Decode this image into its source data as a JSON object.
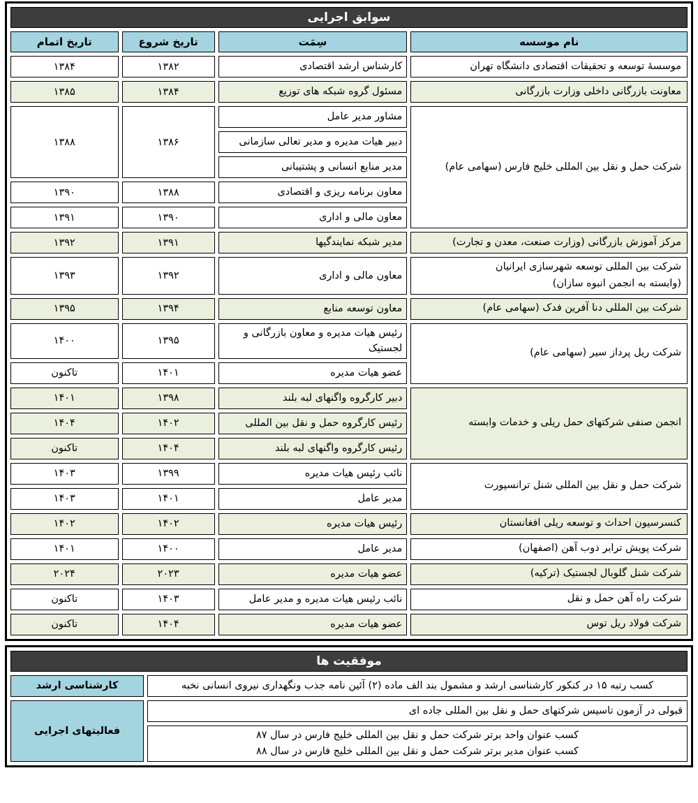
{
  "colors": {
    "title_band": "#3d3d3d",
    "header_blue": "#a5d4e1",
    "row_green": "#eaf0dd",
    "border": "#000000"
  },
  "records": {
    "title": "سوابق اجرایی",
    "headers": {
      "institution": "نام موسسه",
      "position": "سِمَت",
      "start": "تاریخ شروع",
      "end": "تاریخ اتمام"
    },
    "groups": [
      {
        "institution": "موسسهٔ توسعه و تحقیقات اقتصادی دانشگاه تهران",
        "shade": "white",
        "rows": [
          {
            "position": "کارشناس ارشد اقتصادی",
            "start": "۱۳۸۲",
            "end": "۱۳۸۴"
          }
        ]
      },
      {
        "institution": "معاونت بازرگانی داخلی وزارت بازرگانی",
        "shade": "green",
        "rows": [
          {
            "position": "مسئول گروه شبکه های توزیع",
            "start": "۱۳۸۴",
            "end": "۱۳۸۵"
          }
        ]
      },
      {
        "institution": "شرکت حمل و نقل بین المللی خلیج فارس (سهامی عام)",
        "shade": "white",
        "rows": [
          {
            "position": "مشاور مدیر عامل",
            "start": "۱۳۸۶",
            "end": "۱۳۸۸",
            "span": 3
          },
          {
            "position": "دبیر هیات مدیره و مدیر تعالی سازمانی"
          },
          {
            "position": "مدیر منابع انسانی و پشتیبانی"
          },
          {
            "position": "معاون برنامه ریزی و اقتصادی",
            "start": "۱۳۸۸",
            "end": "۱۳۹۰"
          },
          {
            "position": "معاون مالی و اداری",
            "start": "۱۳۹۰",
            "end": "۱۳۹۱"
          }
        ]
      },
      {
        "institution": "مرکز آموزش بازرگانی (وزارت صنعت، معدن و تجارت)",
        "shade": "green",
        "rows": [
          {
            "position": "مدیر شبکه نمایندگیها",
            "start": "۱۳۹۱",
            "end": "۱۳۹۲"
          }
        ]
      },
      {
        "institution": "شرکت بین المللی توسعه شهرسازی ایرانیان\n(وابسته به انجمن انبوه سازان)",
        "shade": "white",
        "rows": [
          {
            "position": "معاون مالی و اداری",
            "start": "۱۳۹۲",
            "end": "۱۳۹۳"
          }
        ]
      },
      {
        "institution": "شرکت بین المللی دنا آفرین فدک (سهامی عام)",
        "shade": "green",
        "rows": [
          {
            "position": "معاون توسعه منابع",
            "start": "۱۳۹۴",
            "end": "۱۳۹۵"
          }
        ]
      },
      {
        "institution": "شرکت ریل پرداز سیر (سهامی عام)",
        "shade": "white",
        "rows": [
          {
            "position": "رئیس هیات مدیره و معاون بازرگانی و لجستیک",
            "start": "۱۳۹۵",
            "end": "۱۴۰۰"
          },
          {
            "position": "عضو هیات مدیره",
            "start": "۱۴۰۱",
            "end": "تاکنون"
          }
        ]
      },
      {
        "institution": "انجمن صنفی شرکتهای حمل ریلی و خدمات وابسته",
        "shade": "green",
        "rows": [
          {
            "position": "دبیر کارگروه واگنهای لبه بلند",
            "start": "۱۳۹۸",
            "end": "۱۴۰۱"
          },
          {
            "position": "رئیس کارگروه حمل و نقل بین المللی",
            "start": "۱۴۰۲",
            "end": "۱۴۰۴"
          },
          {
            "position": "رئیس کارگروه واگنهای لبه بلند",
            "start": "۱۴۰۴",
            "end": "تاکنون"
          }
        ]
      },
      {
        "institution": "شرکت حمل و نقل بین المللی شنل ترانسپورت",
        "shade": "white",
        "rows": [
          {
            "position": "نائب رئیس هیات مدیره",
            "start": "۱۳۹۹",
            "end": "۱۴۰۳"
          },
          {
            "position": "مدیر عامل",
            "start": "۱۴۰۱",
            "end": "۱۴۰۳"
          }
        ]
      },
      {
        "institution": "کنسرسیون احداث و توسعه ریلی افغانستان",
        "shade": "green",
        "rows": [
          {
            "position": "رئیس هیات مدیره",
            "start": "۱۴۰۲",
            "end": "۱۴۰۲"
          }
        ]
      },
      {
        "institution": "شرکت پویش ترابر ذوب آهن (اصفهان)",
        "shade": "white",
        "rows": [
          {
            "position": "مدیر عامل",
            "start": "۱۴۰۰",
            "end": "۱۴۰۱"
          }
        ]
      },
      {
        "institution": "شرکت شنل گلوبال لجستیک (ترکیه)",
        "shade": "green",
        "rows": [
          {
            "position": "عضو هیات مدیره",
            "start": "۲۰۲۳",
            "end": "۲۰۲۴"
          }
        ]
      },
      {
        "institution": "شرکت راه آهن حمل و نقل",
        "shade": "white",
        "rows": [
          {
            "position": "نائب رئیس هیات مدیره و مدیر عامل",
            "start": "۱۴۰۳",
            "end": "تاکنون"
          }
        ]
      },
      {
        "institution": "شرکت فولاد ریل توس",
        "shade": "green",
        "rows": [
          {
            "position": "عضو هیات مدیره",
            "start": "۱۴۰۴",
            "end": "تاکنون"
          }
        ]
      }
    ]
  },
  "achievements": {
    "title": "موفقیت ها",
    "groups": [
      {
        "label": "کارشناسی ارشد",
        "rows": [
          {
            "align": "center",
            "lines": [
              "کسب رتبه ۱۵ در کنکور کارشناسی ارشد و مشمول بند الف ماده (۲) آئین نامه جذب ونگهداری نیروی انسانی نخبه"
            ]
          }
        ]
      },
      {
        "label": "فعالیتهای اجرایی",
        "rows": [
          {
            "align": "right",
            "lines": [
              "قبولی در آزمون تاسیس شرکتهای حمل و نقل بین المللی جاده ای"
            ]
          },
          {
            "align": "center",
            "lines": [
              "کسب عنوان واحد برتر شرکت حمل و نقل بین المللی خلیج فارس در سال ۸۷",
              "کسب عنوان مدیر برتر شرکت حمل و نقل بین المللی خلیج فارس در سال ۸۸"
            ]
          }
        ]
      }
    ]
  }
}
